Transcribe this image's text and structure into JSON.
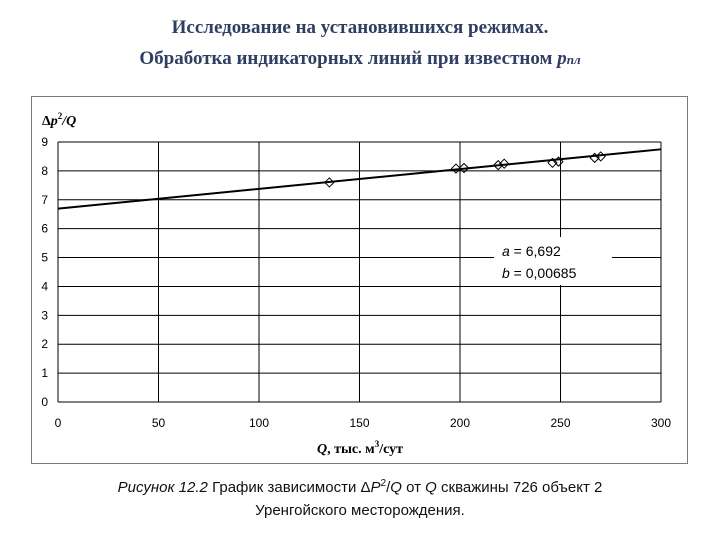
{
  "header": {
    "title_line1": "Исследование на установившихся режимах.",
    "title_line2_main": "Обработка индикаторных линий при известном ",
    "title_line2_p": "p",
    "title_line2_sub": "пл"
  },
  "chart_data": {
    "type": "scatter",
    "ylabel_prefix": "Δ",
    "ylabel_p": "p",
    "ylabel_exp": "2",
    "ylabel_rest": "/Q",
    "xlabel_q": "Q",
    "xlabel_rest": ", тыс. м",
    "xlabel_exp": "3",
    "xlabel_tail": "/сут",
    "xlim": [
      0,
      300
    ],
    "ylim": [
      0,
      9
    ],
    "x_ticks": [
      "0",
      "50",
      "100",
      "150",
      "200",
      "250",
      "300"
    ],
    "y_ticks": [
      "0",
      "1",
      "2",
      "3",
      "4",
      "5",
      "6",
      "7",
      "8",
      "9"
    ],
    "grid": true,
    "points": [
      {
        "x": 135,
        "y": 7.6
      },
      {
        "x": 198,
        "y": 8.08
      },
      {
        "x": 202,
        "y": 8.1
      },
      {
        "x": 219,
        "y": 8.2
      },
      {
        "x": 222,
        "y": 8.25
      },
      {
        "x": 246,
        "y": 8.28
      },
      {
        "x": 249,
        "y": 8.32
      },
      {
        "x": 267,
        "y": 8.45
      },
      {
        "x": 270,
        "y": 8.5
      }
    ],
    "fit_line": {
      "a": 6.692,
      "b": 0.00685,
      "x_from": 0,
      "x_to": 300
    },
    "annotation_a_label": "a",
    "annotation_a_value": " = 6,692",
    "annotation_b_label": "b",
    "annotation_b_value": " = 0,00685",
    "colors": {
      "grid": "#000000",
      "line": "#000000",
      "marker": "#000000"
    }
  },
  "caption": {
    "fig_label": "Рисунок 12.2",
    "text1": " График зависимости Δ",
    "p": "P",
    "p_exp": "2",
    "slash": "/",
    "q1": "Q",
    "text2": " от ",
    "q2": "Q",
    "text3": " скважины 726 объект 2",
    "line2": "Уренгойского месторождения."
  }
}
